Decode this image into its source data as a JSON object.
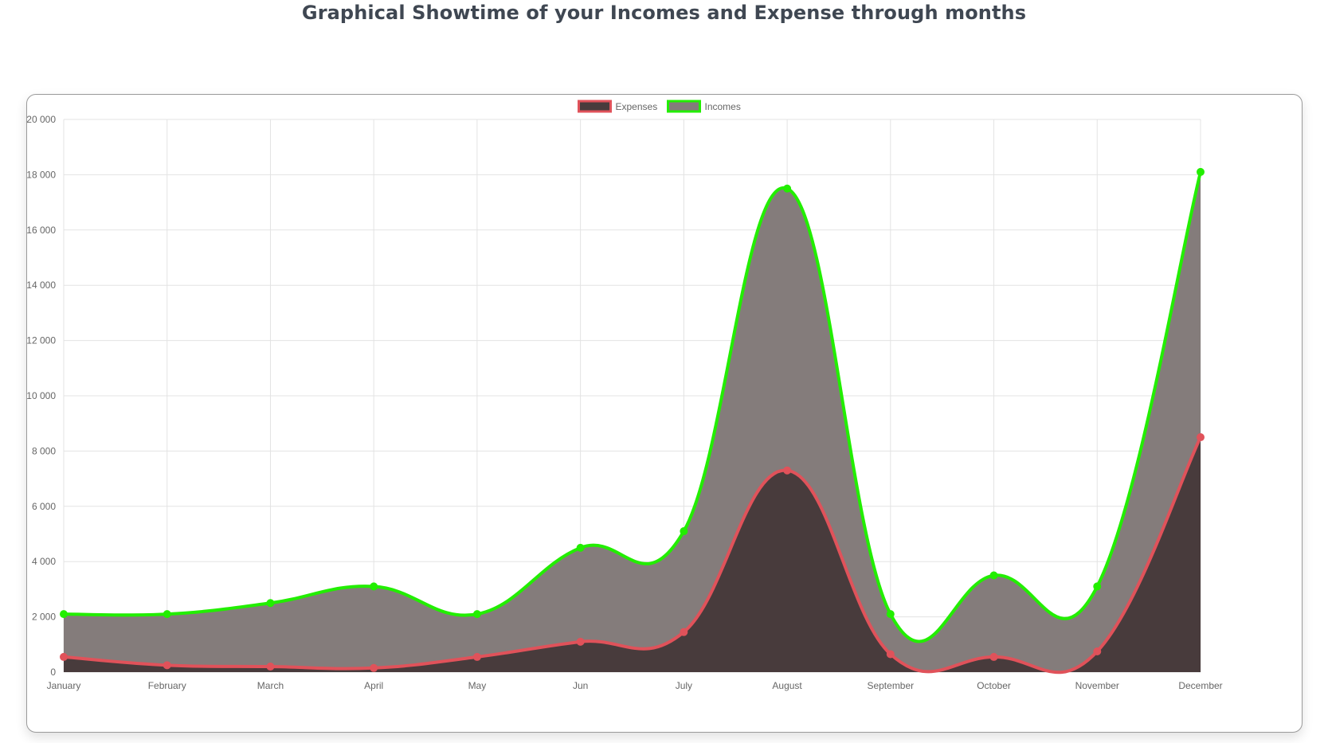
{
  "page": {
    "heading": "Graphical Showtime of your Incomes and Expense through months"
  },
  "chart_data": {
    "type": "area",
    "categories": [
      "January",
      "February",
      "March",
      "April",
      "May",
      "Jun",
      "July",
      "August",
      "September",
      "October",
      "November",
      "December"
    ],
    "series": [
      {
        "name": "Expenses",
        "values": [
          550,
          250,
          200,
          150,
          550,
          1100,
          1450,
          7300,
          650,
          550,
          750,
          8500
        ],
        "border_color": "#e0525a",
        "fill_color": "#483b3c"
      },
      {
        "name": "Incomes",
        "values": [
          2100,
          2100,
          2500,
          3100,
          2100,
          4500,
          5100,
          17500,
          2100,
          3500,
          3100,
          18100
        ],
        "border_color": "#22ee00",
        "fill_color": "#847c7b"
      }
    ],
    "y_ticks": [
      "0",
      "2 000",
      "4 000",
      "6 000",
      "8 000",
      "10 000",
      "12 000",
      "14 000",
      "16 000",
      "18 000",
      "20 000"
    ],
    "ylim": [
      0,
      20000
    ],
    "grid": true,
    "legend_position": "top-center",
    "stacked_fill": true
  }
}
